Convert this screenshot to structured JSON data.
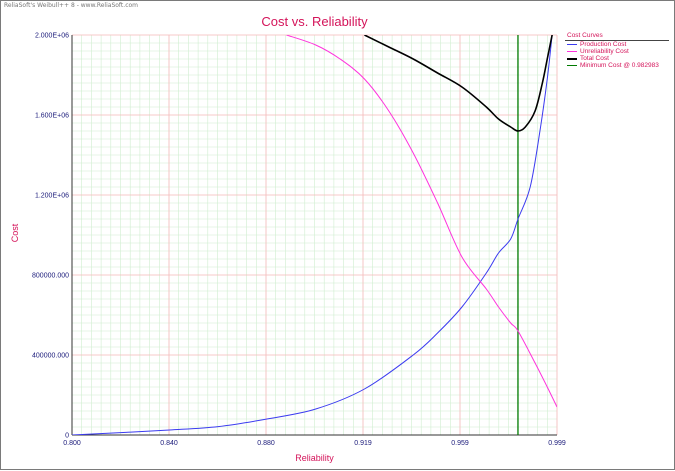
{
  "app": {
    "watermark": "ReliaSoft's Weibull++ 8 - www.ReliaSoft.com"
  },
  "chart_data": {
    "type": "line",
    "title": "Cost vs. Reliability",
    "xlabel": "Reliability",
    "ylabel": "Cost",
    "xlim": [
      0.8,
      0.999
    ],
    "ylim": [
      0,
      2000000
    ],
    "x_ticks": [
      "0.800",
      "0.840",
      "0.880",
      "0.919",
      "0.959",
      "0.999"
    ],
    "y_ticks": [
      "0",
      "400000.000",
      "800000.000",
      "1.200E+06",
      "1.600E+06",
      "2.000E+06"
    ],
    "grid": true,
    "legend": {
      "title": "Cost Curves",
      "placement": "right",
      "entries": [
        "Production Cost",
        "Unreliability Cost",
        "Total Cost",
        "Minimum Cost @ 0.982983"
      ]
    },
    "colors": {
      "title": "#d4145a",
      "ticks": "#1a1a7a",
      "major_grid": "#f4b8b8",
      "minor_grid": "#cfeecf",
      "production": "#3b3bf0",
      "unreliability": "#ff33dd",
      "total": "#000000",
      "minimum": "#007a00"
    },
    "series": [
      {
        "name": "Production Cost",
        "color": "#3b3bf0",
        "x": [
          0.8,
          0.82,
          0.84,
          0.86,
          0.88,
          0.9,
          0.92,
          0.94,
          0.95,
          0.96,
          0.97,
          0.975,
          0.98,
          0.983,
          0.988,
          0.992,
          0.995,
          0.997
        ],
        "y": [
          0,
          12000,
          25000,
          42000,
          80000,
          130000,
          230000,
          400000,
          510000,
          640000,
          810000,
          910000,
          980000,
          1080000,
          1240000,
          1520000,
          1780000,
          2000000
        ]
      },
      {
        "name": "Unreliability Cost",
        "color": "#ff33dd",
        "x": [
          0.888,
          0.9,
          0.91,
          0.92,
          0.93,
          0.94,
          0.95,
          0.96,
          0.97,
          0.975,
          0.98,
          0.983,
          0.99,
          0.995,
          0.999
        ],
        "y": [
          2000000,
          1950000,
          1880000,
          1780000,
          1620000,
          1410000,
          1160000,
          890000,
          730000,
          640000,
          560000,
          520000,
          360000,
          240000,
          140000
        ]
      },
      {
        "name": "Total Cost",
        "color": "#000000",
        "x": [
          0.92,
          0.93,
          0.94,
          0.95,
          0.96,
          0.97,
          0.975,
          0.98,
          0.983,
          0.986,
          0.99,
          0.993,
          0.995,
          0.997
        ],
        "y": [
          2000000,
          1940000,
          1880000,
          1810000,
          1740000,
          1640000,
          1580000,
          1540000,
          1520000,
          1540000,
          1620000,
          1760000,
          1880000,
          2000000
        ]
      }
    ],
    "min_cost_x": 0.982983
  }
}
